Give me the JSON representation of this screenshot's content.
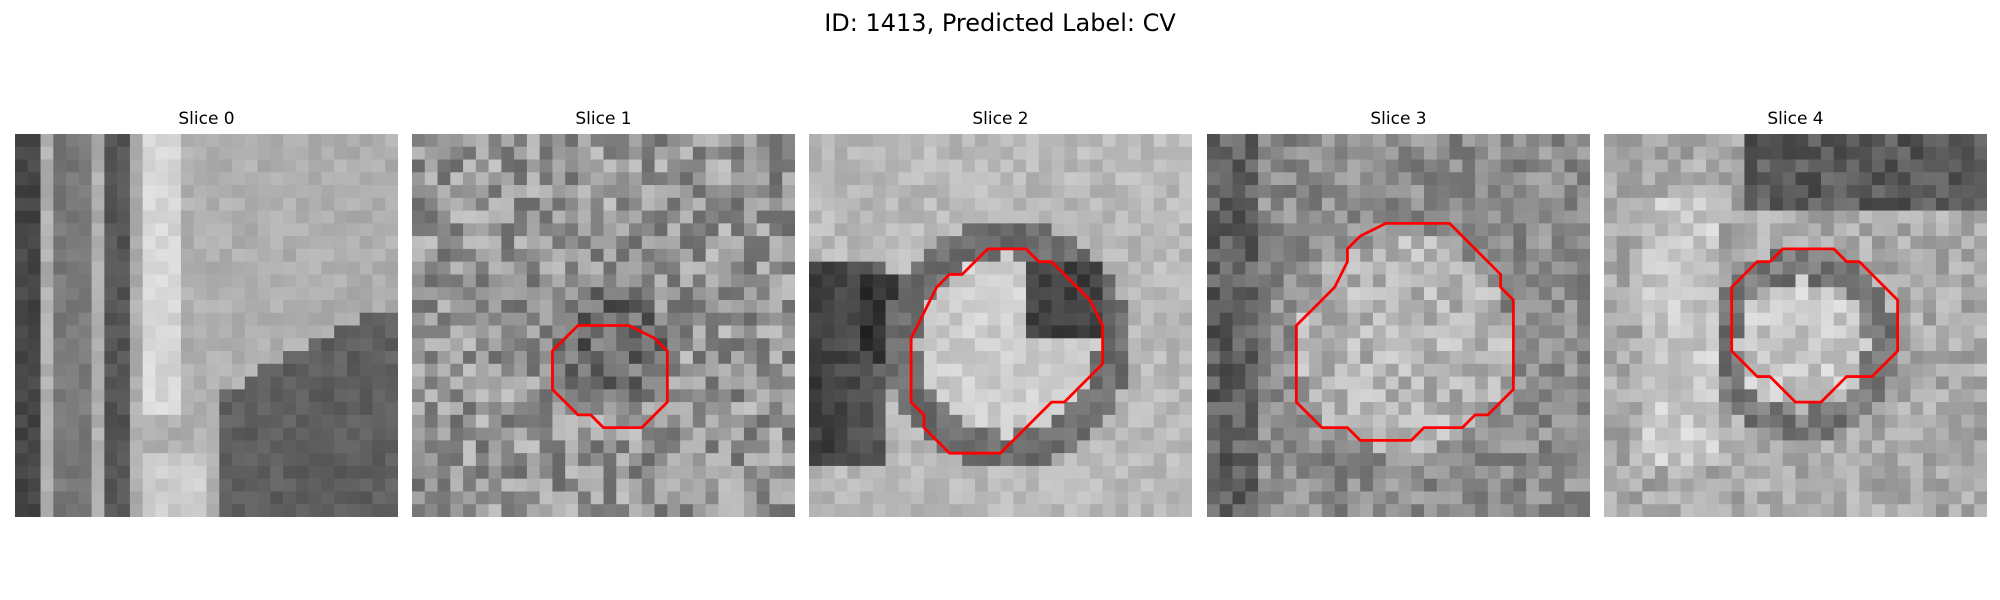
{
  "title": "ID: 1413, Predicted Label: CV",
  "colors": {
    "contour": "#ff0000",
    "background": "#ffffff"
  },
  "panels": [
    {
      "title": "Slice 0",
      "style": "vessel",
      "seed": 11,
      "contour": null
    },
    {
      "title": "Slice 1",
      "style": "noisy",
      "seed": 23,
      "contour": [
        [
          15,
          15
        ],
        [
          17,
          15
        ],
        [
          19,
          16
        ],
        [
          20,
          17
        ],
        [
          20,
          21
        ],
        [
          19,
          22
        ],
        [
          18,
          23
        ],
        [
          15,
          23
        ],
        [
          14,
          22
        ],
        [
          13,
          22
        ],
        [
          12,
          21
        ],
        [
          11,
          20
        ],
        [
          11,
          17
        ],
        [
          12,
          16
        ],
        [
          13,
          15
        ]
      ]
    },
    {
      "title": "Slice 2",
      "style": "ring",
      "seed": 37,
      "contour": [
        [
          13,
          10
        ],
        [
          14,
          9
        ],
        [
          17,
          9
        ],
        [
          18,
          10
        ],
        [
          19,
          10
        ],
        [
          20,
          11
        ],
        [
          21,
          12
        ],
        [
          22,
          13
        ],
        [
          23,
          15
        ],
        [
          23,
          18
        ],
        [
          22,
          19
        ],
        [
          21,
          20
        ],
        [
          20,
          21
        ],
        [
          19,
          21
        ],
        [
          18,
          22
        ],
        [
          17,
          23
        ],
        [
          16,
          24
        ],
        [
          15,
          25
        ],
        [
          11,
          25
        ],
        [
          10,
          24
        ],
        [
          9,
          23
        ],
        [
          9,
          22
        ],
        [
          8,
          21
        ],
        [
          8,
          16
        ],
        [
          9,
          14
        ],
        [
          10,
          12
        ],
        [
          11,
          11
        ],
        [
          12,
          11
        ]
      ]
    },
    {
      "title": "Slice 3",
      "style": "blob",
      "seed": 41,
      "contour": [
        [
          12,
          8
        ],
        [
          14,
          7
        ],
        [
          19,
          7
        ],
        [
          20,
          8
        ],
        [
          21,
          9
        ],
        [
          22,
          10
        ],
        [
          23,
          11
        ],
        [
          23,
          12
        ],
        [
          24,
          13
        ],
        [
          24,
          20
        ],
        [
          23,
          21
        ],
        [
          22,
          22
        ],
        [
          21,
          22
        ],
        [
          20,
          23
        ],
        [
          17,
          23
        ],
        [
          16,
          24
        ],
        [
          12,
          24
        ],
        [
          11,
          23
        ],
        [
          9,
          23
        ],
        [
          8,
          22
        ],
        [
          7,
          21
        ],
        [
          7,
          15
        ],
        [
          8,
          14
        ],
        [
          9,
          13
        ],
        [
          10,
          12
        ],
        [
          11,
          10
        ],
        [
          11,
          9
        ]
      ]
    },
    {
      "title": "Slice 4",
      "style": "bright",
      "seed": 53,
      "contour": [
        [
          14,
          9
        ],
        [
          18,
          9
        ],
        [
          19,
          10
        ],
        [
          20,
          10
        ],
        [
          21,
          11
        ],
        [
          22,
          12
        ],
        [
          23,
          13
        ],
        [
          23,
          17
        ],
        [
          22,
          18
        ],
        [
          21,
          19
        ],
        [
          19,
          19
        ],
        [
          18,
          20
        ],
        [
          17,
          21
        ],
        [
          15,
          21
        ],
        [
          14,
          20
        ],
        [
          13,
          19
        ],
        [
          12,
          19
        ],
        [
          11,
          18
        ],
        [
          10,
          17
        ],
        [
          10,
          12
        ],
        [
          11,
          11
        ],
        [
          12,
          10
        ],
        [
          13,
          10
        ]
      ]
    }
  ]
}
